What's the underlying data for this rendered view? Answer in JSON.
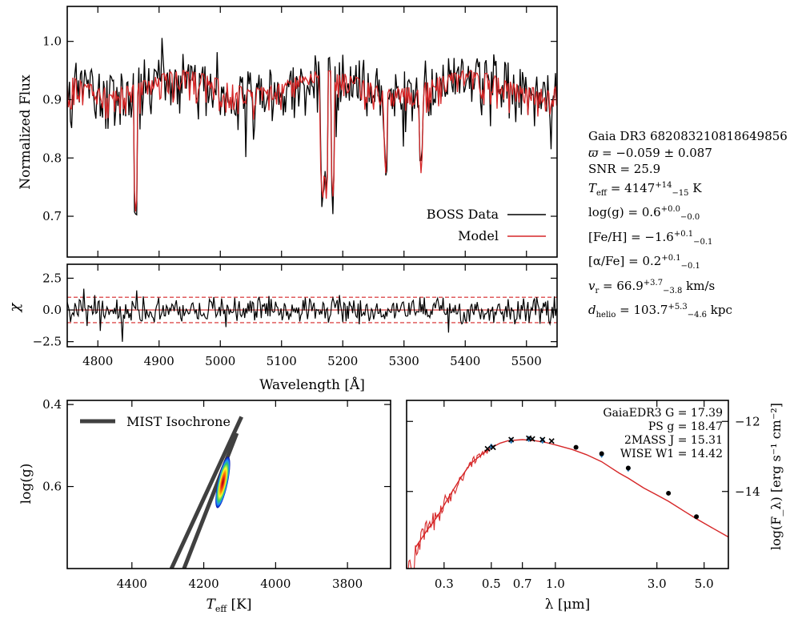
{
  "chart_data": [
    {
      "type": "line",
      "panel": "spectrum",
      "xlabel": "",
      "ylabel": "Normalized Flux",
      "xlim": [
        4750,
        5550
      ],
      "ylim": [
        0.63,
        1.06
      ],
      "yticks": [
        0.7,
        0.8,
        0.9,
        1.0
      ],
      "ytick_labels": [
        "0.7",
        "0.8",
        "0.9",
        "1.0"
      ],
      "series": [
        {
          "name": "BOSS Data",
          "color": "#000000"
        },
        {
          "name": "Model",
          "color": "#d62728"
        }
      ],
      "legend_position": "bottom-right",
      "absorption_features": [
        {
          "x": 4862,
          "y": 0.7
        },
        {
          "x": 5167,
          "y": 0.72
        },
        {
          "x": 5173,
          "y": 0.73
        },
        {
          "x": 5184,
          "y": 0.73
        },
        {
          "x": 5270,
          "y": 0.77
        },
        {
          "x": 5328,
          "y": 0.77
        }
      ]
    },
    {
      "type": "line",
      "panel": "residual",
      "xlabel": "Wavelength [Å]",
      "ylabel": "χ",
      "xlim": [
        4750,
        5550
      ],
      "ylim": [
        -2.9,
        3.6
      ],
      "xticks": [
        4800,
        4900,
        5000,
        5100,
        5200,
        5300,
        5400,
        5500
      ],
      "xtick_labels": [
        "4800",
        "4900",
        "5000",
        "5100",
        "5200",
        "5300",
        "5400",
        "5500"
      ],
      "yticks": [
        -2.5,
        0.0,
        2.5
      ],
      "ytick_labels": [
        "−2.5",
        "0.0",
        "2.5"
      ],
      "reference_lines": [
        -1,
        0,
        1
      ]
    },
    {
      "type": "scatter",
      "panel": "kiel",
      "xlabel": "T_eff [K]",
      "ylabel": "log(g)",
      "xlim": [
        4580,
        3680
      ],
      "ylim": [
        0.8,
        0.39
      ],
      "xticks": [
        4400,
        4200,
        4000,
        3800
      ],
      "xtick_labels": [
        "4400",
        "4200",
        "4000",
        "3800"
      ],
      "yticks": [
        0.4,
        0.6
      ],
      "ytick_labels": [
        "0.4",
        "0.6"
      ],
      "legend_label": "MIST Isochrone",
      "isochrone_tracks": [
        {
          "x": [
            4095,
            4290
          ],
          "y": [
            0.43,
            0.8
          ]
        },
        {
          "x": [
            4108,
            4255
          ],
          "y": [
            0.47,
            0.8
          ]
        }
      ],
      "posterior_center": {
        "teff": 4147,
        "logg": 0.59
      },
      "posterior_sigma": {
        "teff": 14,
        "logg": 0.04
      }
    },
    {
      "type": "line",
      "panel": "sed",
      "xlabel": "λ [μm]",
      "ylabel": "log(F_λ) [erg s⁻¹ cm⁻²]",
      "xscale": "log",
      "xlim": [
        0.2,
        6.5
      ],
      "ylim": [
        -16.2,
        -11.4
      ],
      "xticks": [
        0.3,
        0.5,
        0.7,
        1.0,
        3.0,
        5.0
      ],
      "xtick_labels": [
        "0.3",
        "0.5",
        "0.7",
        "1.0",
        "3.0",
        "5.0"
      ],
      "yticks": [
        -12,
        -14
      ],
      "ytick_labels": [
        "−12",
        "−14"
      ],
      "model_curve": {
        "x": [
          0.22,
          0.25,
          0.28,
          0.32,
          0.36,
          0.4,
          0.45,
          0.5,
          0.55,
          0.6,
          0.7,
          0.8,
          0.9,
          1.0,
          1.2,
          1.4,
          1.65,
          2.0,
          2.2,
          2.6,
          3.0,
          3.4,
          4.0,
          4.6,
          5.5,
          6.5
        ],
        "y": [
          -15.6,
          -15.1,
          -14.7,
          -14.1,
          -13.6,
          -13.2,
          -12.95,
          -12.75,
          -12.62,
          -12.55,
          -12.52,
          -12.55,
          -12.6,
          -12.67,
          -12.8,
          -12.95,
          -13.15,
          -13.48,
          -13.62,
          -13.9,
          -14.1,
          -14.28,
          -14.55,
          -14.78,
          -15.05,
          -15.3
        ]
      },
      "photometry_circles": [
        {
          "x": 1.25,
          "y": -12.74
        },
        {
          "x": 1.65,
          "y": -12.92
        },
        {
          "x": 2.2,
          "y": -13.33
        },
        {
          "x": 3.4,
          "y": -14.05
        },
        {
          "x": 4.6,
          "y": -14.72
        }
      ],
      "photometry_crosses": [
        {
          "x": 0.48,
          "y": -12.78
        },
        {
          "x": 0.51,
          "y": -12.74
        },
        {
          "x": 0.62,
          "y": -12.52
        },
        {
          "x": 0.75,
          "y": -12.48
        },
        {
          "x": 0.78,
          "y": -12.5
        },
        {
          "x": 0.87,
          "y": -12.52
        },
        {
          "x": 0.96,
          "y": -12.56
        }
      ],
      "photometry_diamonds": [
        {
          "x": 0.5,
          "y": -12.72
        },
        {
          "x": 0.62,
          "y": -12.55
        },
        {
          "x": 0.75,
          "y": -12.5
        },
        {
          "x": 0.87,
          "y": -12.55
        },
        {
          "x": 1.65,
          "y": -12.95
        },
        {
          "x": 2.2,
          "y": -13.35
        }
      ],
      "annotations": [
        "GaiaEDR3 G = 17.39",
        "PS g = 18.47",
        "2MASS J = 15.31",
        "WISE W1 = 14.42"
      ]
    }
  ],
  "info": {
    "gaia_id": "Gaia DR3 682083210818649856",
    "parallax_label": "ϖ",
    "parallax_value": " = −0.059 ± 0.087",
    "snr": "SNR = 25.9",
    "teff_label": "T",
    "teff_sub": "eff",
    "teff_value": " = 4147",
    "teff_err_plus": "+14",
    "teff_err_minus": "−15",
    "teff_unit": " K",
    "logg_text": "log(g) = 0.6",
    "logg_err_plus": "+0.0",
    "logg_err_minus": "−0.0",
    "feh_text": "[Fe/H] = −1.6",
    "feh_err_plus": "+0.1",
    "feh_err_minus": "−0.1",
    "alpha_text": "[α/Fe] = 0.2",
    "alpha_err_plus": "+0.1",
    "alpha_err_minus": "−0.1",
    "vr_label": "v",
    "vr_sub": "r",
    "vr_value": " = 66.9",
    "vr_err_plus": "+3.7",
    "vr_err_minus": "−3.8",
    "vr_unit": " km/s",
    "dist_label": "d",
    "dist_sub": "helio",
    "dist_value": " = 103.7",
    "dist_err_plus": "+5.3",
    "dist_err_minus": "−4.6",
    "dist_unit": " kpc"
  },
  "colors": {
    "data": "#000000",
    "model": "#d62728",
    "isochrone": "#404040",
    "photometry_marker": "#000000",
    "photometry_diamond": "#2b7bba"
  }
}
